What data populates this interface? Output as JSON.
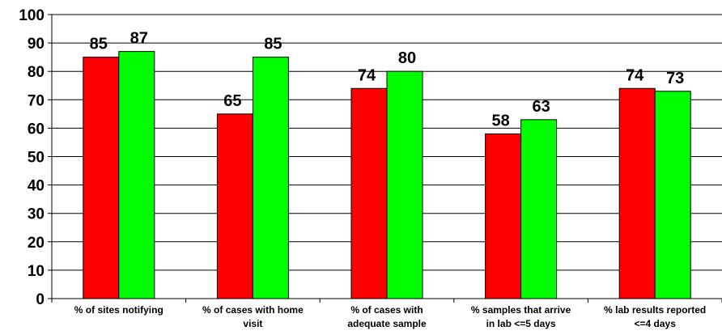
{
  "chart_data": {
    "type": "bar",
    "title": "",
    "xlabel": "",
    "ylabel": "",
    "ylim": [
      0,
      100
    ],
    "yticks": [
      0,
      10,
      20,
      30,
      40,
      50,
      60,
      70,
      80,
      90,
      100
    ],
    "grid": true,
    "legend": "none",
    "categories": [
      [
        "% of sites notifying"
      ],
      [
        "% of cases with home",
        "visit"
      ],
      [
        "% of cases with",
        "adequate sample"
      ],
      [
        "% samples that arrive",
        "in lab <=5 days"
      ],
      [
        "% lab results reported",
        "<=4 days"
      ]
    ],
    "series": [
      {
        "color": "#ff0000",
        "values": [
          85,
          65,
          74,
          58,
          74
        ]
      },
      {
        "color": "#00ff00",
        "values": [
          87,
          85,
          80,
          63,
          73
        ]
      }
    ]
  }
}
